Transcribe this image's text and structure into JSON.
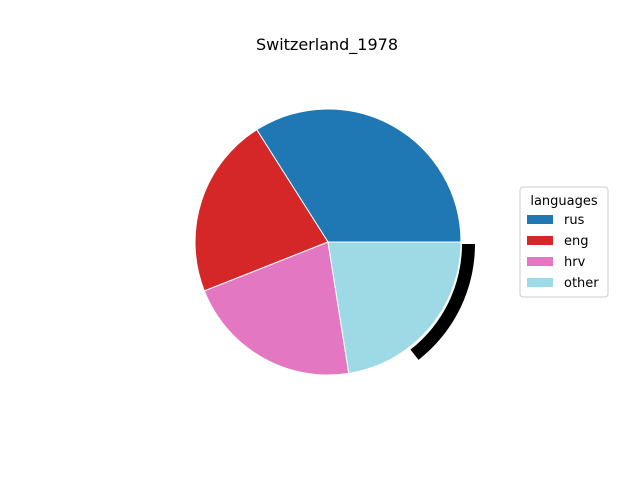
{
  "chart_data": {
    "type": "pie",
    "title": "Switzerland_1978",
    "legend_title": "languages",
    "legend_position": "center-right",
    "start_angle_deg": 0,
    "direction": "counterclockwise",
    "slices": [
      {
        "label": "rus",
        "value": 34.0,
        "color": "#1f77b4",
        "explode": false
      },
      {
        "label": "eng",
        "value": 22.0,
        "color": "#d62728",
        "explode": false
      },
      {
        "label": "hrv",
        "value": 21.5,
        "color": "#e377c2",
        "explode": false
      },
      {
        "label": "other",
        "value": 22.5,
        "color": "#9edae5",
        "explode": false
      }
    ],
    "highlight": {
      "label": "other",
      "arc_start_deg": 0,
      "arc_end_deg": -52,
      "color": "#000000"
    }
  }
}
